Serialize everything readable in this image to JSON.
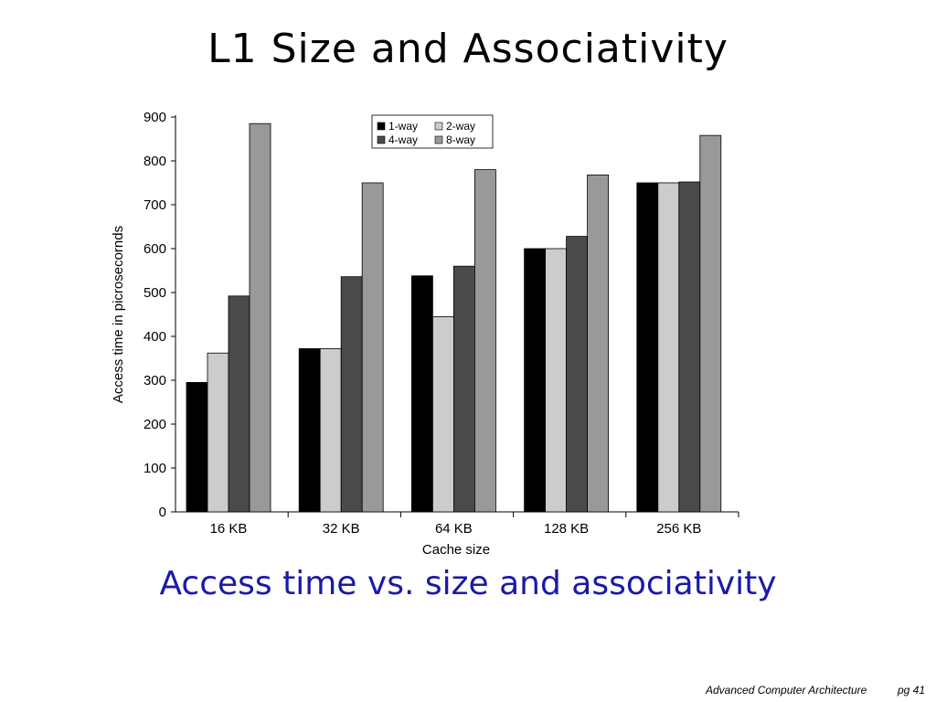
{
  "slide": {
    "title": "L1 Size and Associativity",
    "caption": "Access time vs. size and associativity",
    "footer_left": "Advanced Computer Architecture",
    "footer_right": "pg 41"
  },
  "chart_data": {
    "type": "bar",
    "title": "",
    "xlabel": "Cache size",
    "ylabel": "Access time in picrosecornds",
    "ylim": [
      0,
      900
    ],
    "yticks": [
      0,
      100,
      200,
      300,
      400,
      500,
      600,
      700,
      800,
      900
    ],
    "categories": [
      "16 KB",
      "32 KB",
      "64 KB",
      "128 KB",
      "256 KB"
    ],
    "series": [
      {
        "name": "1-way",
        "color": "#000000",
        "values": [
          295,
          372,
          538,
          600,
          750
        ]
      },
      {
        "name": "2-way",
        "color": "#cccccc",
        "values": [
          362,
          372,
          445,
          600,
          750
        ]
      },
      {
        "name": "4-way",
        "color": "#4a4a4a",
        "values": [
          492,
          536,
          560,
          628,
          752
        ]
      },
      {
        "name": "8-way",
        "color": "#999999",
        "values": [
          885,
          750,
          780,
          768,
          858
        ]
      }
    ],
    "legend": "top-center",
    "grid": false
  }
}
